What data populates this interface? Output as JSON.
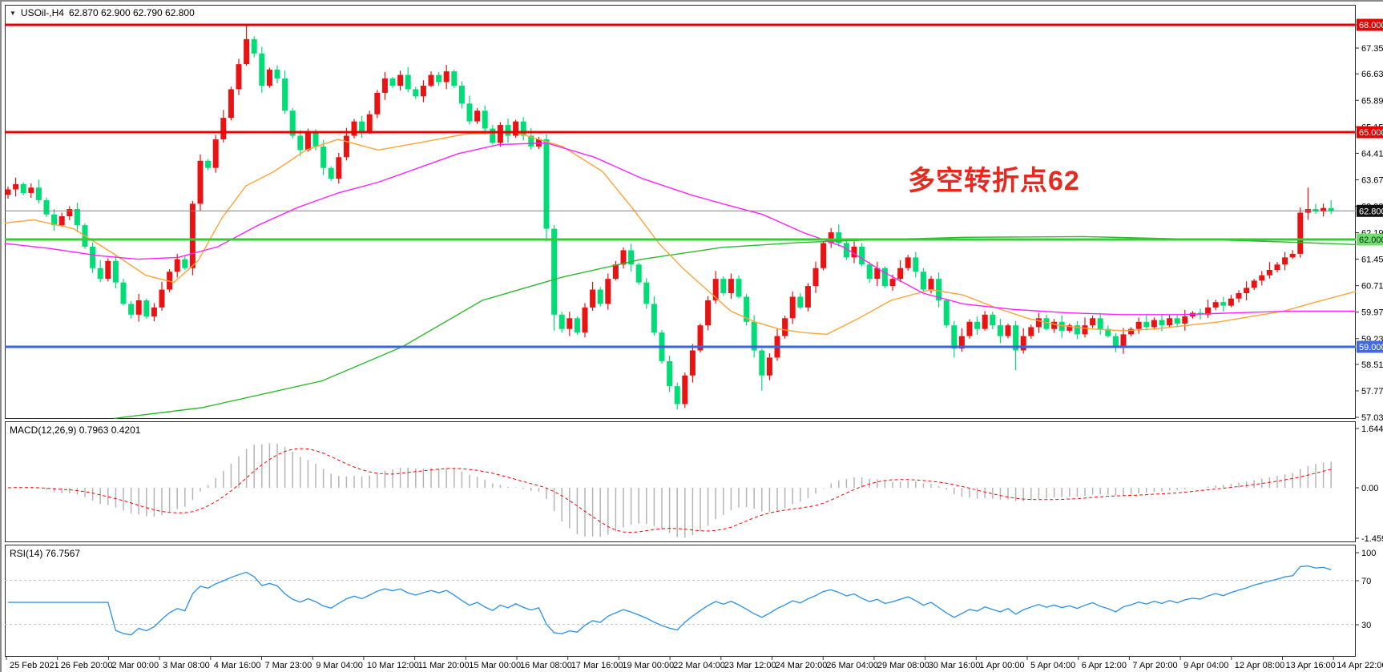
{
  "window": {
    "symbol": "USOil-,H4",
    "quote": "62.870 62.900 62.790 62.800"
  },
  "annotation": {
    "text": "多空转折点62",
    "color": "#e8291f"
  },
  "panels": {
    "macd": {
      "label": "MACD(12,26,9) 0.7963 0.4201"
    },
    "rsi": {
      "label": "RSI(14) 76.7567"
    }
  },
  "chart_data": {
    "type": "candlestick",
    "title": "USOil H4 candlestick chart with MACD(12,26,9) and RSI(14) subpanels",
    "ylim": [
      57.03,
      68.65
    ],
    "grid": false,
    "open0": 63.25,
    "closes": [
      63.4,
      63.55,
      63.3,
      63.45,
      63.1,
      62.7,
      62.4,
      62.65,
      62.85,
      62.4,
      61.8,
      61.2,
      60.9,
      61.4,
      60.8,
      60.2,
      59.9,
      60.3,
      59.85,
      60.1,
      60.6,
      61.1,
      61.45,
      61.2,
      63.0,
      64.2,
      64.0,
      64.8,
      65.4,
      66.2,
      66.9,
      67.6,
      67.2,
      66.3,
      66.75,
      66.5,
      65.6,
      64.9,
      64.5,
      65.0,
      64.6,
      64.0,
      63.7,
      64.3,
      64.9,
      65.3,
      65.0,
      65.5,
      66.1,
      66.5,
      66.3,
      66.6,
      66.2,
      66.0,
      66.3,
      66.6,
      66.4,
      66.7,
      66.3,
      65.8,
      65.3,
      65.6,
      65.1,
      64.7,
      65.2,
      64.9,
      65.3,
      64.9,
      64.6,
      64.8,
      62.3,
      59.9,
      59.5,
      59.8,
      59.4,
      60.1,
      60.6,
      60.2,
      60.9,
      61.3,
      61.7,
      61.3,
      60.8,
      60.2,
      59.4,
      58.6,
      57.9,
      57.4,
      58.2,
      58.9,
      59.6,
      60.3,
      60.9,
      60.5,
      60.9,
      60.4,
      59.7,
      58.9,
      58.2,
      58.7,
      59.3,
      59.8,
      60.4,
      60.1,
      60.7,
      61.2,
      61.9,
      62.2,
      61.9,
      61.5,
      61.8,
      61.3,
      60.9,
      61.2,
      60.7,
      60.9,
      61.2,
      61.5,
      61.1,
      60.6,
      60.9,
      60.3,
      59.6,
      58.95,
      59.3,
      59.7,
      59.5,
      59.9,
      59.6,
      59.3,
      59.6,
      58.9,
      59.3,
      59.55,
      59.8,
      59.5,
      59.7,
      59.45,
      59.6,
      59.35,
      59.6,
      59.8,
      59.5,
      59.3,
      59.0,
      59.35,
      59.5,
      59.7,
      59.55,
      59.75,
      59.6,
      59.8,
      59.65,
      59.85,
      59.95,
      59.9,
      60.1,
      60.25,
      60.15,
      60.35,
      60.5,
      60.65,
      60.85,
      61.0,
      61.15,
      61.3,
      61.5,
      61.6,
      62.75,
      62.85,
      62.78,
      62.88,
      62.8
    ],
    "wick_pattern": [
      0.08,
      0.18,
      0.05,
      0.12,
      0.22,
      0.07,
      0.15,
      0.1
    ],
    "wick_overrides": {
      "24": {
        "l": 61.0
      },
      "31": {
        "h": 68.0
      },
      "70": {
        "l": 61.95
      },
      "71": {
        "l": 59.45
      },
      "87": {
        "l": 57.25
      },
      "98": {
        "l": 57.78
      },
      "123": {
        "l": 58.7
      },
      "131": {
        "l": 58.35
      },
      "144": {
        "l": 58.85
      },
      "168": {
        "h": 62.9
      },
      "169": {
        "h": 63.45
      },
      "170": {
        "h": 63.0
      }
    },
    "colors": {
      "up": "#e81414",
      "down": "#00dd77",
      "macd_hist": "#b5b5b5",
      "macd_signal": "#ff0000",
      "rsi_line": "#3597e8",
      "rsi_level": "#c2c2c2",
      "current_line": "#808080",
      "axis": "#2b2b2b"
    },
    "moving_averages": [
      {
        "name": "ma-slow-green",
        "color": "#2eb82e",
        "points": [
          [
            140,
            57.0
          ],
          [
            250,
            57.3
          ],
          [
            400,
            58.05
          ],
          [
            500,
            59.0
          ],
          [
            600,
            60.3
          ],
          [
            700,
            60.95
          ],
          [
            800,
            61.45
          ],
          [
            900,
            61.78
          ],
          [
            1000,
            61.92
          ],
          [
            1100,
            62.0
          ],
          [
            1200,
            62.06
          ],
          [
            1350,
            62.08
          ],
          [
            1500,
            62.0
          ],
          [
            1600,
            61.93
          ],
          [
            1690,
            61.86
          ]
        ]
      },
      {
        "name": "ma-medium-orange",
        "color": "#ffa335",
        "points": [
          [
            0,
            62.45
          ],
          [
            40,
            62.55
          ],
          [
            90,
            62.3
          ],
          [
            140,
            61.6
          ],
          [
            180,
            61.0
          ],
          [
            215,
            60.8
          ],
          [
            245,
            61.4
          ],
          [
            275,
            62.6
          ],
          [
            305,
            63.5
          ],
          [
            340,
            63.9
          ],
          [
            380,
            64.5
          ],
          [
            420,
            64.8
          ],
          [
            470,
            64.5
          ],
          [
            520,
            64.7
          ],
          [
            580,
            64.95
          ],
          [
            640,
            65.0
          ],
          [
            700,
            64.6
          ],
          [
            750,
            63.9
          ],
          [
            790,
            62.8
          ],
          [
            820,
            61.9
          ],
          [
            850,
            61.2
          ],
          [
            880,
            60.6
          ],
          [
            910,
            60.0
          ],
          [
            940,
            59.7
          ],
          [
            970,
            59.5
          ],
          [
            1000,
            59.4
          ],
          [
            1030,
            59.35
          ],
          [
            1070,
            59.8
          ],
          [
            1110,
            60.3
          ],
          [
            1160,
            60.6
          ],
          [
            1200,
            60.45
          ],
          [
            1240,
            60.1
          ],
          [
            1280,
            59.8
          ],
          [
            1320,
            59.6
          ],
          [
            1360,
            59.5
          ],
          [
            1400,
            59.45
          ],
          [
            1440,
            59.5
          ],
          [
            1480,
            59.6
          ],
          [
            1520,
            59.7
          ],
          [
            1560,
            59.85
          ],
          [
            1600,
            60.0
          ],
          [
            1640,
            60.25
          ],
          [
            1690,
            60.55
          ]
        ]
      },
      {
        "name": "ma-fast-magenta",
        "color": "#ff22ff",
        "points": [
          [
            0,
            61.9
          ],
          [
            60,
            61.75
          ],
          [
            120,
            61.55
          ],
          [
            170,
            61.45
          ],
          [
            220,
            61.5
          ],
          [
            270,
            61.8
          ],
          [
            320,
            62.4
          ],
          [
            370,
            62.9
          ],
          [
            420,
            63.3
          ],
          [
            470,
            63.6
          ],
          [
            520,
            64.0
          ],
          [
            570,
            64.4
          ],
          [
            620,
            64.65
          ],
          [
            680,
            64.7
          ],
          [
            740,
            64.3
          ],
          [
            800,
            63.7
          ],
          [
            860,
            63.25
          ],
          [
            900,
            63.0
          ],
          [
            950,
            62.7
          ],
          [
            1000,
            62.2
          ],
          [
            1050,
            61.8
          ],
          [
            1100,
            61.1
          ],
          [
            1150,
            60.5
          ],
          [
            1200,
            60.2
          ],
          [
            1260,
            60.05
          ],
          [
            1330,
            59.95
          ],
          [
            1400,
            59.9
          ],
          [
            1470,
            59.9
          ],
          [
            1540,
            59.95
          ],
          [
            1610,
            60.0
          ],
          [
            1690,
            60.0
          ]
        ]
      }
    ],
    "hlines": [
      {
        "price": 68.0,
        "label": "68.000",
        "line": "#e80000",
        "bg": "#e80000",
        "fg": "#ffffff",
        "w": 3
      },
      {
        "price": 65.0,
        "label": "65.000",
        "line": "#e80000",
        "bg": "#e80000",
        "fg": "#ffffff",
        "w": 3
      },
      {
        "price": 62.0,
        "label": "62.000",
        "line": "#33cc33",
        "bg": "#70dd70",
        "fg": "#003300",
        "w": 3
      },
      {
        "price": 59.0,
        "label": "59.000",
        "line": "#3c64e0",
        "bg": "#4169e1",
        "fg": "#ffffff",
        "w": 3
      }
    ],
    "current_price": {
      "price": 62.8,
      "label": "62.800",
      "bg": "#111111",
      "fg": "#ffffff"
    },
    "price_ticks": [
      [
        68.0,
        "68.000"
      ],
      [
        67.35,
        "67.350"
      ],
      [
        66.63,
        "66.630"
      ],
      [
        65.89,
        "65.890"
      ],
      [
        65.15,
        "65.150"
      ],
      [
        64.41,
        "64.410"
      ],
      [
        63.67,
        "63.670"
      ],
      [
        62.93,
        "62.930"
      ],
      [
        62.19,
        "62.190"
      ],
      [
        61.45,
        "61.450"
      ],
      [
        60.71,
        "60.710"
      ],
      [
        59.97,
        "59.970"
      ],
      [
        59.23,
        "59.230"
      ],
      [
        58.51,
        "58.510"
      ],
      [
        57.77,
        "57.770"
      ],
      [
        57.03,
        "57.030"
      ]
    ],
    "macd_ticks": [
      [
        533,
        "1.6446"
      ],
      [
        607,
        "0.00"
      ],
      [
        670,
        "-1.4594"
      ]
    ],
    "rsi_ticks": [
      [
        688,
        "100"
      ],
      [
        723,
        "70"
      ],
      [
        778,
        "30"
      ]
    ],
    "rsi_levels": [
      70,
      30
    ],
    "dates": [
      "25 Feb 2021",
      "26 Feb 20:00",
      "2 Mar 00:00",
      "3 Mar 08:00",
      "4 Mar 16:00",
      "7 Mar 23:00",
      "9 Mar 04:00",
      "10 Mar 12:00",
      "11 Mar 20:00",
      "15 Mar 00:00",
      "16 Mar 08:00",
      "17 Mar 16:00",
      "19 Mar 00:00",
      "22 Mar 04:00",
      "23 Mar 12:00",
      "24 Mar 20:00",
      "26 Mar 04:00",
      "29 Mar 08:00",
      "30 Mar 16:00",
      "1 Apr 00:00",
      "5 Apr 04:00",
      "6 Apr 12:00",
      "7 Apr 20:00",
      "9 Apr 04:00",
      "12 Apr 08:00",
      "13 Apr 16:00",
      "14 Apr 22:00"
    ]
  }
}
